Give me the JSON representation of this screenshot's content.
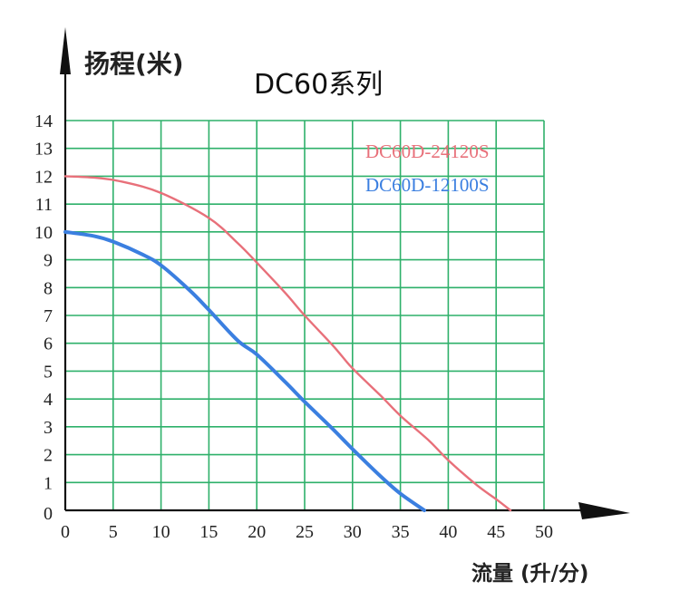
{
  "chart_data": {
    "type": "line",
    "title": "DC60系列",
    "ylabel": "扬程(米)",
    "xlabel": "流量 (升/分)",
    "xlim": [
      0,
      50
    ],
    "ylim": [
      0,
      14
    ],
    "x_ticks": [
      "0",
      "5",
      "10",
      "15",
      "20",
      "25",
      "30",
      "35",
      "40",
      "45",
      "50"
    ],
    "y_ticks": [
      "0",
      "1",
      "2",
      "3",
      "4",
      "5",
      "6",
      "7",
      "8",
      "9",
      "10",
      "11",
      "12",
      "13",
      "14"
    ],
    "grid": true,
    "legend_position": "top-right",
    "series": [
      {
        "name": "DC60D-24120S",
        "color": "#e8707a",
        "points": [
          [
            0,
            12.0
          ],
          [
            3,
            11.95
          ],
          [
            6,
            11.8
          ],
          [
            10,
            11.4
          ],
          [
            15,
            10.5
          ],
          [
            18,
            9.6
          ],
          [
            20,
            8.9
          ],
          [
            23,
            7.8
          ],
          [
            25,
            7.0
          ],
          [
            28,
            5.9
          ],
          [
            30,
            5.1
          ],
          [
            33,
            4.1
          ],
          [
            35,
            3.4
          ],
          [
            38,
            2.5
          ],
          [
            40,
            1.8
          ],
          [
            43,
            0.9
          ],
          [
            45,
            0.4
          ],
          [
            46.5,
            0.0
          ]
        ]
      },
      {
        "name": "DC60D-12100S",
        "color": "#3b7fe0",
        "points": [
          [
            0,
            10.0
          ],
          [
            3,
            9.85
          ],
          [
            5,
            9.65
          ],
          [
            8,
            9.2
          ],
          [
            10,
            8.8
          ],
          [
            13,
            7.9
          ],
          [
            15,
            7.2
          ],
          [
            18,
            6.1
          ],
          [
            20,
            5.6
          ],
          [
            23,
            4.6
          ],
          [
            25,
            3.9
          ],
          [
            28,
            2.9
          ],
          [
            30,
            2.2
          ],
          [
            33,
            1.2
          ],
          [
            35,
            0.6
          ],
          [
            37.5,
            0.0
          ]
        ]
      }
    ]
  }
}
